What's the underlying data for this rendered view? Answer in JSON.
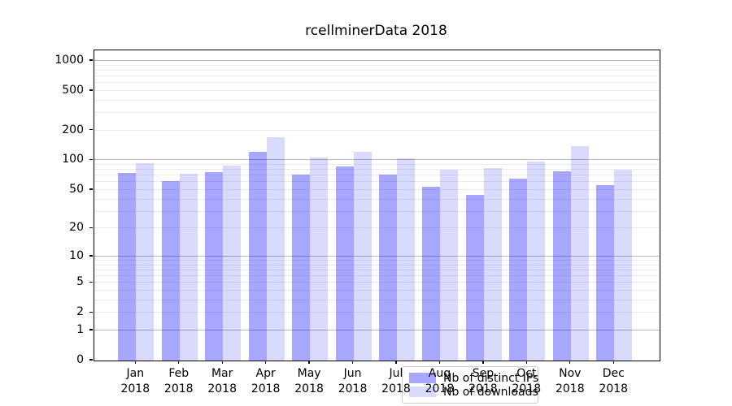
{
  "title": "rcellminerData 2018",
  "chart_data": {
    "type": "bar",
    "title": "rcellminerData 2018",
    "categories": [
      "Jan",
      "Feb",
      "Mar",
      "Apr",
      "May",
      "Jun",
      "Jul",
      "Aug",
      "Sep",
      "Oct",
      "Nov",
      "Dec"
    ],
    "category_second_line": "2018",
    "series": [
      {
        "name": "Nb of distinct IPs",
        "color": "rgba(0,0,255,0.345)",
        "values": [
          75,
          62,
          76,
          123,
          72,
          87,
          72,
          54,
          45,
          65,
          78,
          56
        ]
      },
      {
        "name": "Nb of downloads",
        "color": "rgba(0,0,255,0.145)",
        "values": [
          93,
          73,
          89,
          170,
          106,
          123,
          104,
          80,
          84,
          97,
          140,
          80
        ]
      }
    ],
    "xlabel": "",
    "ylabel": "",
    "yscale": "log1p",
    "ylim": [
      0,
      1280
    ],
    "yticks_labeled": [
      0,
      1,
      2,
      5,
      10,
      20,
      50,
      100,
      200,
      500,
      1000
    ],
    "gridlines_major": [
      1,
      10,
      100,
      1000
    ],
    "gridlines_minor": [
      2,
      3,
      4,
      5,
      6,
      7,
      8,
      9,
      20,
      30,
      40,
      50,
      60,
      70,
      80,
      90,
      200,
      300,
      400,
      500,
      600,
      700,
      800,
      900
    ],
    "grid": true,
    "legend_position": "lower-center-inside"
  },
  "legend": {
    "items": [
      {
        "label": "Nb of distinct IPs",
        "color": "rgba(0,0,255,0.345)"
      },
      {
        "label": "Nb of downloads",
        "color": "rgba(0,0,255,0.145)"
      }
    ]
  },
  "colors": {
    "bar_dark": "#a8a8f7",
    "bar_light": "#dcdcfa",
    "grid_major": "#b8b8b8",
    "grid_minor": "#ebebeb",
    "spine": "#000000",
    "background": "#ffffff"
  }
}
